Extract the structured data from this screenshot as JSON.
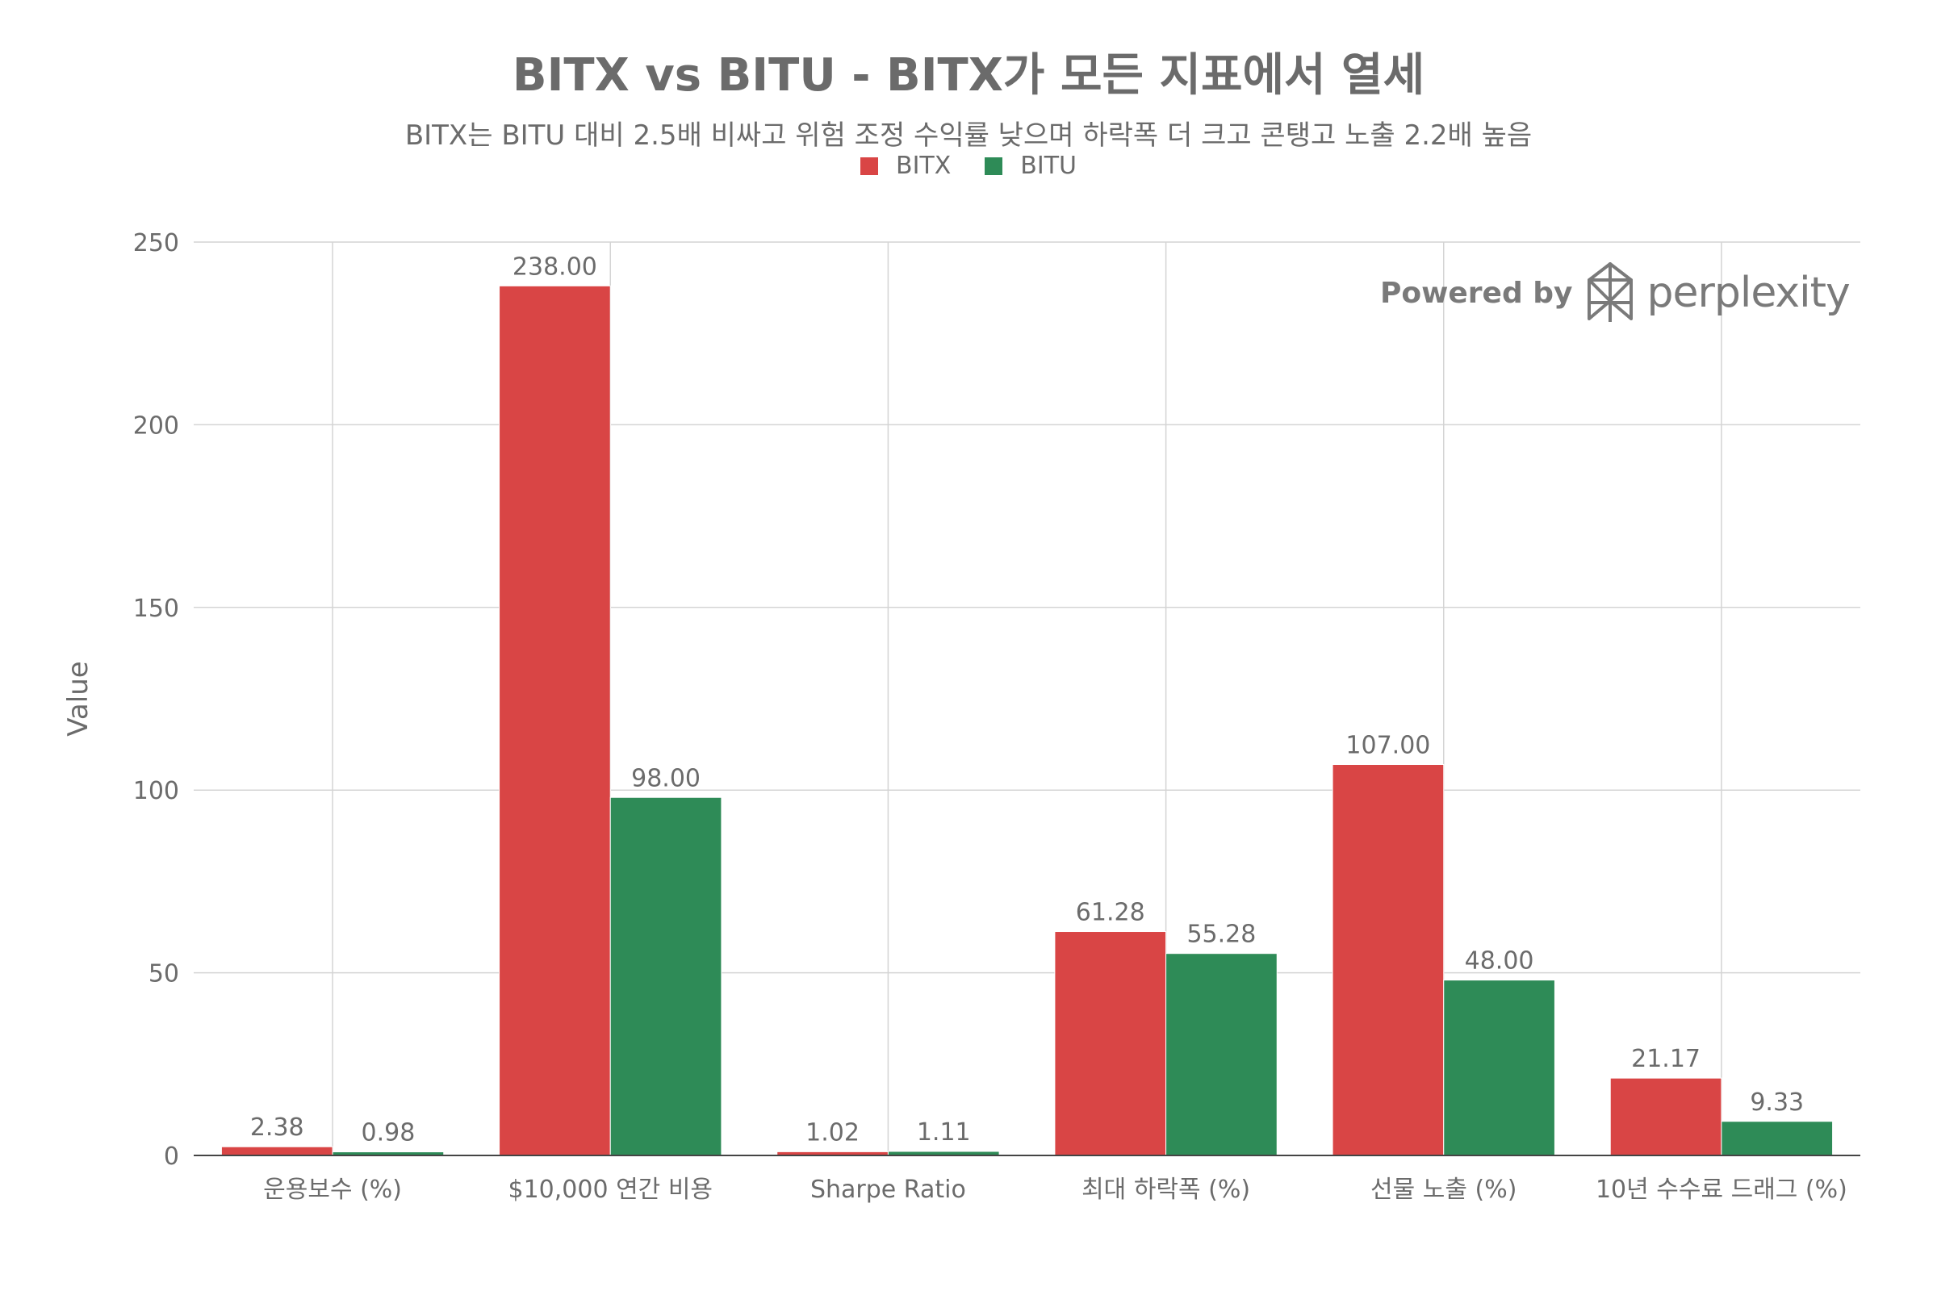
{
  "chart_data": {
    "type": "bar",
    "title": "BITX vs BITU - BITX가 모든 지표에서 열세",
    "subtitle": "BITX는 BITU 대비 2.5배 비싸고 위험 조정 수익률 낮으며 하락폭 더 크고 콘탱고 노출 2.2배 높음",
    "ylabel": "Value",
    "xlabel": "",
    "ylim": [
      0,
      250
    ],
    "yticks": [
      "0",
      "50",
      "100",
      "150",
      "200",
      "250"
    ],
    "grid": true,
    "legend_position": "top-center",
    "categories": [
      "운용보수 (%)",
      "$10,000 연간 비용",
      "Sharpe Ratio",
      "최대 하락폭 (%)",
      "선물 노출 (%)",
      "10년 수수료 드래그 (%)"
    ],
    "series": [
      {
        "name": "BITX",
        "color": "#d94545",
        "values": [
          2.38,
          238.0,
          1.02,
          61.28,
          107.0,
          21.17
        ],
        "labels": [
          "2.38",
          "238.00",
          "1.02",
          "61.28",
          "107.00",
          "21.17"
        ]
      },
      {
        "name": "BITU",
        "color": "#2e8b57",
        "values": [
          0.98,
          98.0,
          1.11,
          55.28,
          48.0,
          9.33
        ],
        "labels": [
          "0.98",
          "98.00",
          "1.11",
          "55.28",
          "48.00",
          "9.33"
        ]
      }
    ]
  },
  "watermark": {
    "powered_by": "Powered by",
    "brand": "perplexity",
    "icon": "perplexity-logo-icon"
  }
}
